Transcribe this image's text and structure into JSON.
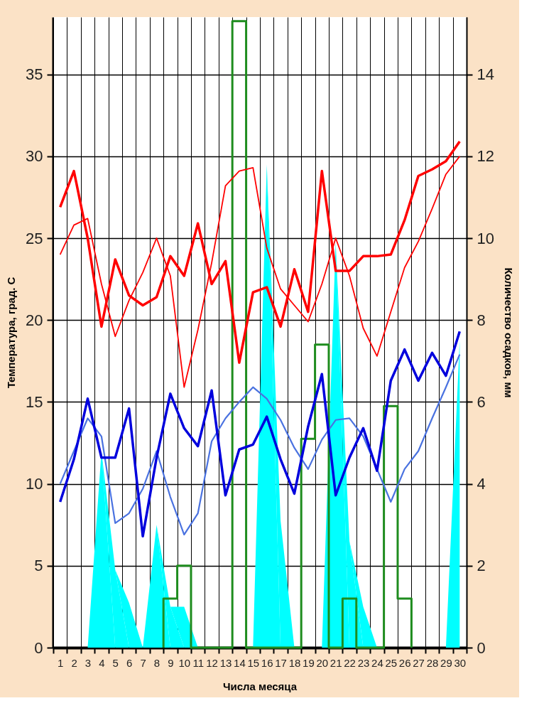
{
  "chart_data": {
    "type": "line",
    "xlabel": "Числа месяца",
    "ylabel": "Температура, град. С",
    "y2label": "Количество осадков, мм",
    "x": [
      1,
      2,
      3,
      4,
      5,
      6,
      7,
      8,
      9,
      10,
      11,
      12,
      13,
      14,
      15,
      16,
      17,
      18,
      19,
      20,
      21,
      22,
      23,
      24,
      25,
      26,
      27,
      28,
      29,
      30
    ],
    "xlim": [
      0.45,
      30.5
    ],
    "xticks": [
      {
        "value": 0.5,
        "label": null
      },
      1,
      {
        "value": 1.5,
        "label": null
      },
      2,
      {
        "value": 2.5,
        "label": null
      },
      3,
      {
        "value": 3.5,
        "label": null
      },
      4,
      {
        "value": 4.5,
        "label": null
      },
      5,
      {
        "value": 5.5,
        "label": null
      },
      6,
      {
        "value": 6.5,
        "label": null
      },
      7,
      {
        "value": 7.5,
        "label": null
      },
      8,
      {
        "value": 8.5,
        "label": null
      },
      9,
      {
        "value": 9.5,
        "label": null
      },
      10,
      {
        "value": 10.5,
        "label": null
      },
      11,
      {
        "value": 11.5,
        "label": null
      },
      12,
      {
        "value": 12.5,
        "label": null
      },
      13,
      {
        "value": 13.5,
        "label": null
      },
      14,
      {
        "value": 14.5,
        "label": null
      },
      15,
      {
        "value": 15.5,
        "label": null
      },
      16,
      {
        "value": 16.5,
        "label": null
      },
      17,
      {
        "value": 17.5,
        "label": null
      },
      18,
      {
        "value": 18.5,
        "label": null
      },
      19,
      {
        "value": 19.5,
        "label": null
      },
      20,
      {
        "value": 20.5,
        "label": null
      },
      21,
      {
        "value": 21.5,
        "label": null
      },
      22,
      {
        "value": 22.5,
        "label": null
      },
      23,
      {
        "value": 23.5,
        "label": null
      },
      24,
      {
        "value": 24.5,
        "label": null
      },
      25,
      {
        "value": 25.5,
        "label": null
      },
      26,
      {
        "value": 26.5,
        "label": null
      },
      27,
      {
        "value": 27.5,
        "label": null
      },
      28,
      {
        "value": 28.5,
        "label": null
      },
      29,
      {
        "value": 29.5,
        "label": null
      },
      30,
      {
        "value": 30.5,
        "label": null
      }
    ],
    "ylim": [
      0,
      38.5
    ],
    "yticks": [
      0,
      5,
      10,
      15,
      20,
      25,
      30,
      35
    ],
    "y2lim": [
      0,
      15.4
    ],
    "y2ticks": [
      0,
      2,
      4,
      6,
      8,
      10,
      12,
      14
    ],
    "grid": true,
    "marker": "none",
    "line_style": "solid",
    "series": [
      {
        "type": "area",
        "axis": "y2",
        "color": "#00ffff",
        "values": [
          0,
          0,
          0,
          4.8,
          1.9,
          1.1,
          0,
          3.0,
          1.0,
          1.0,
          0,
          0,
          0,
          0,
          0,
          11.8,
          3.1,
          0,
          0,
          0,
          9.9,
          2.6,
          1.0,
          0,
          0,
          0,
          0,
          0,
          0,
          7.5
        ]
      },
      {
        "axis": "y2",
        "color": "#1e8c1e",
        "x": [
          8.5,
          8.5,
          9.5,
          9.5,
          10.5,
          10.5,
          13.5,
          13.5,
          14.5,
          14.5,
          18.5,
          18.5,
          19.5,
          19.5,
          20.5,
          20.5,
          21.5,
          21.5,
          22.5,
          22.5,
          24.5,
          24.5,
          25.5,
          25.5,
          26.5,
          26.5
        ],
        "values": [
          0,
          1.2,
          1.2,
          2.0,
          2.0,
          0,
          0,
          15.3,
          15.3,
          0,
          0,
          5.1,
          5.1,
          7.4,
          7.4,
          0,
          0,
          1.2,
          1.2,
          0,
          0,
          5.9,
          5.9,
          1.2,
          1.2,
          0
        ]
      },
      {
        "color": "#ff0000",
        "values": [
          24.0,
          25.8,
          26.2,
          22.2,
          19.0,
          21.2,
          22.9,
          25.0,
          22.7,
          15.9,
          19.4,
          23.5,
          28.2,
          29.1,
          29.3,
          24.4,
          21.9,
          20.9,
          19.9,
          22.2,
          25.0,
          22.7,
          19.5,
          17.8,
          20.5,
          23.2,
          24.8,
          26.8,
          28.9,
          30.0
        ]
      },
      {
        "color": "#ff0000",
        "values": [
          26.9,
          29.1,
          25.0,
          19.6,
          23.7,
          21.5,
          20.9,
          21.4,
          23.9,
          22.7,
          25.9,
          22.2,
          23.6,
          17.4,
          21.7,
          22.0,
          19.6,
          23.1,
          20.5,
          29.1,
          23.0,
          23.0,
          23.9,
          23.9,
          24.0,
          26.1,
          28.8,
          29.2,
          29.7,
          30.9
        ]
      },
      {
        "color": "#4a72e0",
        "values": [
          10.0,
          12.0,
          14.0,
          12.9,
          7.6,
          8.2,
          9.7,
          12.0,
          9.2,
          6.9,
          8.2,
          12.6,
          14.0,
          15.0,
          15.9,
          15.2,
          13.9,
          12.2,
          10.9,
          12.7,
          13.9,
          14.0,
          12.9,
          10.9,
          8.9,
          10.9,
          12.0,
          14.0,
          15.9,
          17.9
        ]
      },
      {
        "color": "#0000dd",
        "values": [
          8.9,
          11.5,
          15.2,
          11.6,
          11.6,
          14.6,
          6.8,
          11.6,
          15.5,
          13.4,
          12.3,
          15.7,
          9.3,
          12.1,
          12.4,
          14.1,
          11.5,
          9.4,
          13.5,
          16.7,
          9.3,
          11.6,
          13.4,
          10.8,
          16.3,
          18.2,
          16.3,
          18.0,
          16.6,
          19.3
        ]
      }
    ]
  }
}
